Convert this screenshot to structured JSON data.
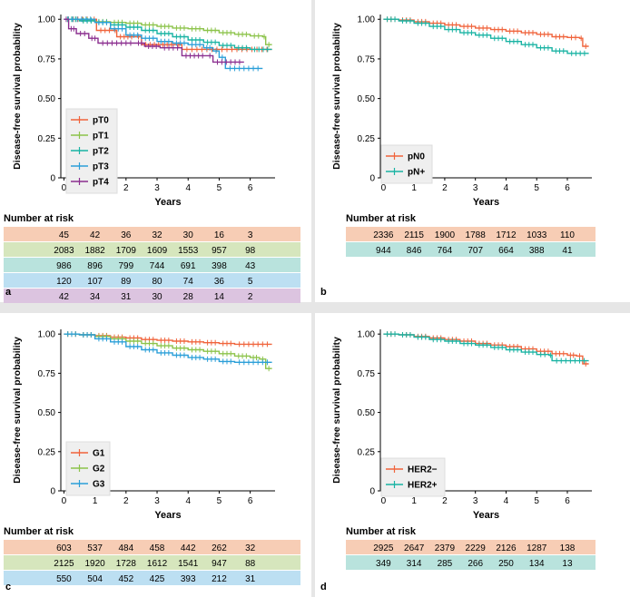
{
  "colors": {
    "background": "#e6e6e6",
    "orange": "#f0643c",
    "green": "#8cc34a",
    "teal": "#19b3a3",
    "blue": "#2b9fd8",
    "purple": "#8b2f8f",
    "risk_orange": "#f7cdb5",
    "risk_green": "#d6e6bd",
    "risk_teal": "#b9e3dd",
    "risk_blue": "#bcdff2",
    "risk_purple": "#dcc4e0"
  },
  "chart_data": [
    {
      "type": "line",
      "panel_label": "a",
      "title": "",
      "xlabel": "Years",
      "ylabel": "Disease-free survival probability",
      "x_ticks": [
        "0",
        "1",
        "2",
        "3",
        "4",
        "5",
        "6"
      ],
      "y_ticks": [
        "0",
        "0.25",
        "0.50",
        "0.75",
        "1.00"
      ],
      "xlim": [
        -0.1,
        6.8
      ],
      "ylim": [
        0,
        1.03
      ],
      "legend_position": "bottom-left",
      "risk_header": "Number at risk",
      "series": [
        {
          "name": "pT0",
          "color": "#f0643c",
          "risk": [
            "45",
            "42",
            "36",
            "32",
            "30",
            "16",
            "3"
          ],
          "points": [
            [
              0,
              1.0
            ],
            [
              0.9,
              1.0
            ],
            [
              1.05,
              0.93
            ],
            [
              1.6,
              0.93
            ],
            [
              1.7,
              0.89
            ],
            [
              2.3,
              0.89
            ],
            [
              2.5,
              0.84
            ],
            [
              3.6,
              0.84
            ],
            [
              3.8,
              0.81
            ],
            [
              6.7,
              0.81
            ]
          ]
        },
        {
          "name": "pT1",
          "color": "#8cc34a",
          "risk": [
            "2083",
            "1882",
            "1709",
            "1609",
            "1553",
            "957",
            "98"
          ],
          "points": [
            [
              0,
              1.0
            ],
            [
              0.5,
              0.995
            ],
            [
              1,
              0.985
            ],
            [
              1.5,
              0.98
            ],
            [
              2,
              0.975
            ],
            [
              2.5,
              0.965
            ],
            [
              3,
              0.955
            ],
            [
              3.5,
              0.945
            ],
            [
              4,
              0.94
            ],
            [
              4.5,
              0.93
            ],
            [
              5,
              0.915
            ],
            [
              5.5,
              0.905
            ],
            [
              6,
              0.895
            ],
            [
              6.4,
              0.89
            ],
            [
              6.5,
              0.84
            ],
            [
              6.7,
              0.84
            ]
          ]
        },
        {
          "name": "pT2",
          "color": "#19b3a3",
          "risk": [
            "986",
            "896",
            "799",
            "744",
            "691",
            "398",
            "43"
          ],
          "points": [
            [
              0,
              1.0
            ],
            [
              0.5,
              0.99
            ],
            [
              1,
              0.98
            ],
            [
              1.5,
              0.965
            ],
            [
              2,
              0.95
            ],
            [
              2.5,
              0.93
            ],
            [
              3,
              0.91
            ],
            [
              3.5,
              0.89
            ],
            [
              4,
              0.87
            ],
            [
              4.5,
              0.855
            ],
            [
              5,
              0.835
            ],
            [
              5.5,
              0.82
            ],
            [
              6,
              0.81
            ],
            [
              6.7,
              0.81
            ]
          ]
        },
        {
          "name": "pT3",
          "color": "#2b9fd8",
          "risk": [
            "120",
            "107",
            "89",
            "80",
            "74",
            "36",
            "5"
          ],
          "points": [
            [
              0,
              1.0
            ],
            [
              1,
              0.98
            ],
            [
              1.5,
              0.94
            ],
            [
              2,
              0.9
            ],
            [
              2.5,
              0.88
            ],
            [
              3,
              0.86
            ],
            [
              3.5,
              0.85
            ],
            [
              4,
              0.84
            ],
            [
              4.5,
              0.82
            ],
            [
              4.8,
              0.8
            ],
            [
              5,
              0.76
            ],
            [
              5.2,
              0.69
            ],
            [
              6.4,
              0.69
            ]
          ]
        },
        {
          "name": "pT4",
          "color": "#8b2f8f",
          "risk": [
            "42",
            "34",
            "31",
            "30",
            "28",
            "14",
            "2"
          ],
          "points": [
            [
              0,
              1.0
            ],
            [
              0.15,
              0.94
            ],
            [
              0.4,
              0.91
            ],
            [
              0.8,
              0.88
            ],
            [
              1.1,
              0.85
            ],
            [
              2.3,
              0.85
            ],
            [
              2.6,
              0.83
            ],
            [
              3.1,
              0.82
            ],
            [
              3.8,
              0.77
            ],
            [
              4.6,
              0.77
            ],
            [
              4.8,
              0.73
            ],
            [
              5.8,
              0.73
            ]
          ]
        }
      ]
    },
    {
      "type": "line",
      "panel_label": "b",
      "title": "",
      "xlabel": "Years",
      "ylabel": "Disease-free survival probability",
      "x_ticks": [
        "0",
        "1",
        "2",
        "3",
        "4",
        "5",
        "6"
      ],
      "y_ticks": [
        "0",
        "0.25",
        "0.50",
        "0.75",
        "1.00"
      ],
      "xlim": [
        -0.1,
        6.8
      ],
      "ylim": [
        0,
        1.03
      ],
      "legend_position": "bottom-left",
      "risk_header": "Number at risk",
      "series": [
        {
          "name": "pN0",
          "color": "#f0643c",
          "risk": [
            "2336",
            "2115",
            "1900",
            "1788",
            "1712",
            "1033",
            "110"
          ],
          "points": [
            [
              0,
              1.0
            ],
            [
              0.5,
              0.995
            ],
            [
              1,
              0.985
            ],
            [
              1.5,
              0.975
            ],
            [
              2,
              0.965
            ],
            [
              2.5,
              0.955
            ],
            [
              3,
              0.945
            ],
            [
              3.5,
              0.935
            ],
            [
              4,
              0.925
            ],
            [
              4.5,
              0.915
            ],
            [
              5,
              0.905
            ],
            [
              5.5,
              0.89
            ],
            [
              6,
              0.885
            ],
            [
              6.4,
              0.88
            ],
            [
              6.5,
              0.83
            ],
            [
              6.7,
              0.83
            ]
          ]
        },
        {
          "name": "pN+",
          "color": "#19b3a3",
          "risk": [
            "944",
            "846",
            "764",
            "707",
            "664",
            "388",
            "41"
          ],
          "points": [
            [
              0,
              1.0
            ],
            [
              0.5,
              0.99
            ],
            [
              1,
              0.975
            ],
            [
              1.5,
              0.955
            ],
            [
              2,
              0.935
            ],
            [
              2.5,
              0.915
            ],
            [
              3,
              0.9
            ],
            [
              3.5,
              0.88
            ],
            [
              4,
              0.86
            ],
            [
              4.5,
              0.84
            ],
            [
              5,
              0.82
            ],
            [
              5.5,
              0.8
            ],
            [
              6,
              0.785
            ],
            [
              6.7,
              0.785
            ]
          ]
        }
      ]
    },
    {
      "type": "line",
      "panel_label": "c",
      "title": "",
      "xlabel": "Years",
      "ylabel": "Disease-free survival probability",
      "x_ticks": [
        "0",
        "1",
        "2",
        "3",
        "4",
        "5",
        "6"
      ],
      "y_ticks": [
        "0",
        "0.25",
        "0.50",
        "0.75",
        "1.00"
      ],
      "xlim": [
        -0.1,
        6.8
      ],
      "ylim": [
        0,
        1.03
      ],
      "legend_position": "bottom-left",
      "risk_header": "Number at risk",
      "series": [
        {
          "name": "G1",
          "color": "#f0643c",
          "risk": [
            "603",
            "537",
            "484",
            "458",
            "442",
            "262",
            "32"
          ],
          "points": [
            [
              0,
              1.0
            ],
            [
              0.5,
              0.995
            ],
            [
              1,
              0.99
            ],
            [
              1.5,
              0.98
            ],
            [
              2,
              0.975
            ],
            [
              2.5,
              0.965
            ],
            [
              3,
              0.96
            ],
            [
              3.5,
              0.955
            ],
            [
              4,
              0.95
            ],
            [
              4.5,
              0.945
            ],
            [
              5,
              0.94
            ],
            [
              5.5,
              0.935
            ],
            [
              6.7,
              0.935
            ]
          ]
        },
        {
          "name": "G2",
          "color": "#8cc34a",
          "risk": [
            "2125",
            "1920",
            "1728",
            "1612",
            "1541",
            "947",
            "88"
          ],
          "points": [
            [
              0,
              1.0
            ],
            [
              0.5,
              0.995
            ],
            [
              1,
              0.985
            ],
            [
              1.5,
              0.97
            ],
            [
              2,
              0.955
            ],
            [
              2.5,
              0.94
            ],
            [
              3,
              0.925
            ],
            [
              3.5,
              0.91
            ],
            [
              4,
              0.9
            ],
            [
              4.5,
              0.89
            ],
            [
              5,
              0.875
            ],
            [
              5.5,
              0.86
            ],
            [
              6,
              0.85
            ],
            [
              6.3,
              0.84
            ],
            [
              6.5,
              0.78
            ],
            [
              6.7,
              0.78
            ]
          ]
        },
        {
          "name": "G3",
          "color": "#2b9fd8",
          "risk": [
            "550",
            "504",
            "452",
            "425",
            "393",
            "212",
            "31"
          ],
          "points": [
            [
              0,
              1.0
            ],
            [
              0.5,
              0.995
            ],
            [
              1,
              0.97
            ],
            [
              1.5,
              0.95
            ],
            [
              2,
              0.92
            ],
            [
              2.5,
              0.9
            ],
            [
              3,
              0.88
            ],
            [
              3.5,
              0.865
            ],
            [
              4,
              0.85
            ],
            [
              4.5,
              0.84
            ],
            [
              5,
              0.825
            ],
            [
              5.5,
              0.82
            ],
            [
              6.7,
              0.82
            ]
          ]
        }
      ]
    },
    {
      "type": "line",
      "panel_label": "d",
      "title": "",
      "xlabel": "Years",
      "ylabel": "Disease-free survival probability",
      "x_ticks": [
        "0",
        "1",
        "2",
        "3",
        "4",
        "5",
        "6"
      ],
      "y_ticks": [
        "0",
        "0.25",
        "0.50",
        "0.75",
        "1.00"
      ],
      "xlim": [
        -0.1,
        6.8
      ],
      "ylim": [
        0,
        1.03
      ],
      "legend_position": "bottom-left",
      "risk_header": "Number at risk",
      "series": [
        {
          "name": "HER2−",
          "color": "#f0643c",
          "risk": [
            "2925",
            "2647",
            "2379",
            "2229",
            "2126",
            "1287",
            "138"
          ],
          "points": [
            [
              0,
              1.0
            ],
            [
              0.5,
              0.995
            ],
            [
              1,
              0.985
            ],
            [
              1.5,
              0.975
            ],
            [
              2,
              0.965
            ],
            [
              2.5,
              0.955
            ],
            [
              3,
              0.94
            ],
            [
              3.5,
              0.93
            ],
            [
              4,
              0.92
            ],
            [
              4.5,
              0.905
            ],
            [
              5,
              0.89
            ],
            [
              5.5,
              0.875
            ],
            [
              6,
              0.865
            ],
            [
              6.3,
              0.86
            ],
            [
              6.5,
              0.81
            ],
            [
              6.7,
              0.81
            ]
          ]
        },
        {
          "name": "HER2+",
          "color": "#19b3a3",
          "risk": [
            "349",
            "314",
            "285",
            "266",
            "250",
            "134",
            "13"
          ],
          "points": [
            [
              0,
              1.0
            ],
            [
              0.5,
              0.995
            ],
            [
              1,
              0.98
            ],
            [
              1.5,
              0.965
            ],
            [
              2,
              0.955
            ],
            [
              2.5,
              0.94
            ],
            [
              3,
              0.93
            ],
            [
              3.5,
              0.915
            ],
            [
              4,
              0.9
            ],
            [
              4.5,
              0.885
            ],
            [
              5,
              0.87
            ],
            [
              5.4,
              0.865
            ],
            [
              5.5,
              0.83
            ],
            [
              6.7,
              0.83
            ]
          ]
        }
      ]
    }
  ]
}
